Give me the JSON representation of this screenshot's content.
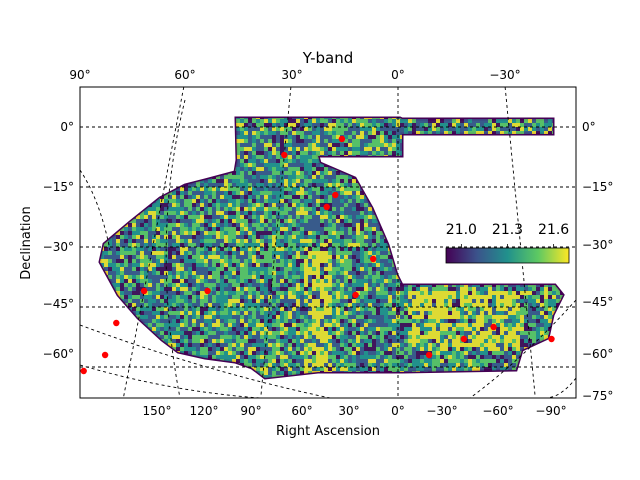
{
  "chart_data": {
    "type": "heatmap",
    "title": "Y-band",
    "xlabel": "Right Ascension",
    "ylabel": "Declination",
    "xlim": [
      130,
      -85
    ],
    "ylim": [
      -75,
      10
    ],
    "grid": true,
    "top_ticks": [
      "90°",
      "60°",
      "30°",
      "0°",
      "−30°"
    ],
    "bottom_ticks": [
      "150°",
      "120°",
      "90°",
      "60°",
      "30°",
      "0°",
      "−30°",
      "−60°",
      "−90°"
    ],
    "left_ticks": [
      "0°",
      "−15°",
      "−30°",
      "−45°",
      "−60°"
    ],
    "right_ticks": [
      "0°",
      "−15°",
      "−30°",
      "−45°",
      "−60°",
      "−75°"
    ],
    "colorbar": {
      "ticks": [
        "21.0",
        "21.3",
        "21.6"
      ],
      "range": [
        20.9,
        21.7
      ],
      "colormap": [
        "#440154",
        "#3b528b",
        "#21918c",
        "#5ec962",
        "#fde725"
      ]
    },
    "markers": {
      "color": "#ff0000",
      "points": [
        {
          "ra": 30,
          "dec": -7
        },
        {
          "ra": 15,
          "dec": -3
        },
        {
          "ra": 16,
          "dec": -17
        },
        {
          "ra": 18,
          "dec": -20
        },
        {
          "ra": 6,
          "dec": -33
        },
        {
          "ra": 60,
          "dec": -41
        },
        {
          "ra": 45,
          "dec": -41
        },
        {
          "ra": 10,
          "dec": -42
        },
        {
          "ra": 65,
          "dec": -49
        },
        {
          "ra": 66,
          "dec": -57
        },
        {
          "ra": 70,
          "dec": -61
        },
        {
          "ra": -7,
          "dec": -57
        },
        {
          "ra": -15,
          "dec": -53
        },
        {
          "ra": -22,
          "dec": -50
        },
        {
          "ra": -35,
          "dec": -53
        }
      ]
    }
  }
}
